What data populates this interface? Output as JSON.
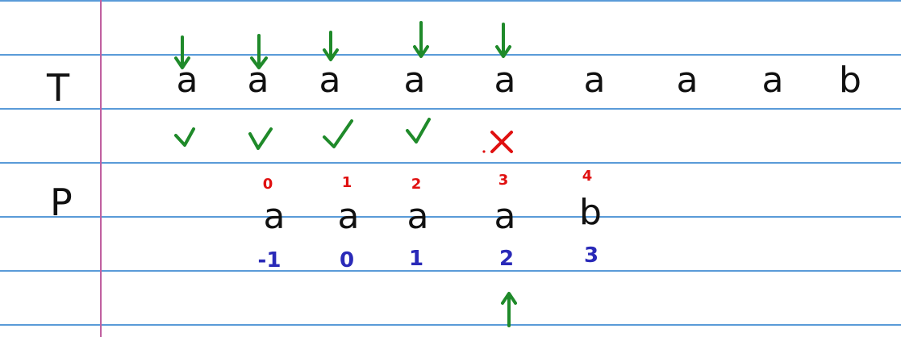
{
  "row_labels": {
    "text": "T",
    "pattern": "P"
  },
  "text_chars": [
    "a",
    "a",
    "a",
    "a",
    "a",
    "a",
    "a",
    "a",
    "b"
  ],
  "pattern_chars": [
    "a",
    "a",
    "a",
    "a",
    "b"
  ],
  "pattern_indices": [
    "0",
    "1",
    "2",
    "3",
    "4"
  ],
  "next_values": [
    "-1",
    "0",
    "1",
    "2",
    "3"
  ],
  "match_marks": [
    "✓",
    "✓",
    "✓",
    "✓",
    "✗"
  ],
  "colors": {
    "rule": "#5a9bd8",
    "margin": "#c060a0",
    "arrow": "#1f8a2a",
    "check": "#1f8a2a",
    "cross": "#e01010",
    "index": "#e01010",
    "next": "#2a2ab8",
    "ink": "#111111"
  }
}
